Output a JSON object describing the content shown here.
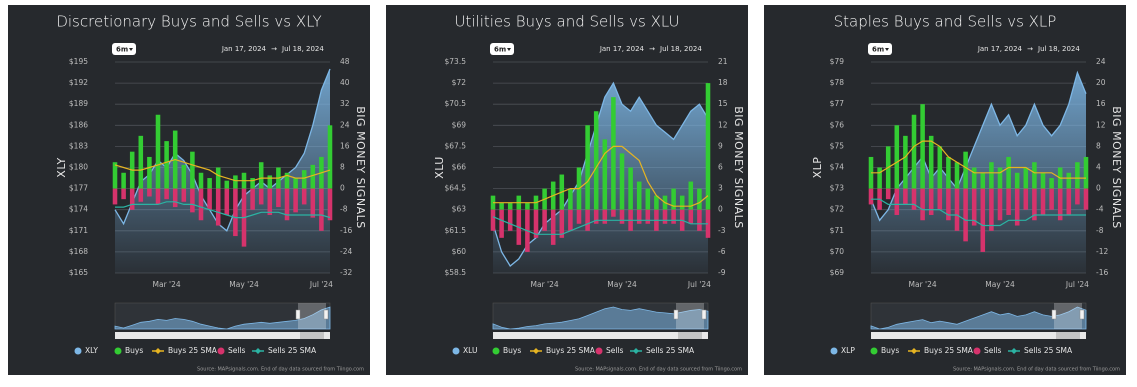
{
  "chart_data": [
    {
      "type": "combo",
      "title": "Discretionary Buys and Sells vs XLY",
      "range_button": "6m",
      "date_from": "Jan 17, 2024",
      "date_to": "Jul 18, 2024",
      "ylabel": "XLY",
      "y2label": "BIG MONEY SIGNALS",
      "source": "Source: MAPsignals.com. End of day data sourced from Tiingo.com",
      "categories": [
        null,
        null,
        null,
        null,
        null,
        null,
        "Mar '24",
        null,
        null,
        null,
        null,
        null,
        null,
        null,
        null,
        "May '24",
        null,
        null,
        null,
        null,
        null,
        null,
        null,
        null,
        "Jul '24",
        null
      ],
      "ylim": [
        165,
        195
      ],
      "yticks": [
        {
          "value": 195,
          "label": "$195"
        },
        {
          "value": 192,
          "label": "$192"
        },
        {
          "value": 189,
          "label": "$189"
        },
        {
          "value": 186,
          "label": "$186"
        },
        {
          "value": 183,
          "label": "$183"
        },
        {
          "value": 180,
          "label": "$180"
        },
        {
          "value": 177,
          "label": "$177"
        },
        {
          "value": 174,
          "label": "$174"
        },
        {
          "value": 171,
          "label": "$171"
        },
        {
          "value": 168,
          "label": "$168"
        },
        {
          "value": 165,
          "label": "$165"
        }
      ],
      "y2lim": [
        -32,
        48
      ],
      "y2ticks": [
        48,
        40,
        32,
        24,
        16,
        8,
        0,
        -8,
        -16,
        -24,
        -32
      ],
      "grid": true,
      "series": [
        {
          "name": "XLY",
          "kind": "area",
          "color": "#7db7e6",
          "values": [
            174,
            172,
            175,
            178,
            179,
            181,
            180,
            182,
            181,
            179,
            176,
            174,
            172,
            171,
            174,
            176,
            177,
            178,
            177,
            178,
            179,
            180,
            182,
            186,
            191,
            194
          ]
        },
        {
          "name": "Buys",
          "kind": "bar",
          "axis": "y2",
          "color": "#33cc33",
          "values": [
            10,
            6,
            14,
            20,
            12,
            28,
            18,
            22,
            9,
            14,
            6,
            4,
            8,
            3,
            5,
            6,
            4,
            10,
            5,
            8,
            6,
            4,
            7,
            9,
            12,
            24
          ]
        },
        {
          "name": "Buys 25 SMA",
          "kind": "line",
          "axis": "y2",
          "color": "#e6b422",
          "values": [
            9,
            8,
            7,
            7,
            8,
            9,
            10,
            11,
            10,
            9,
            8,
            7,
            5,
            4,
            3,
            3,
            3,
            4,
            4,
            4,
            5,
            4,
            4,
            5,
            6,
            7
          ]
        },
        {
          "name": "Sells",
          "kind": "bar",
          "axis": "y2",
          "color": "#d6336c",
          "values": [
            -6,
            -4,
            -8,
            -5,
            -3,
            -6,
            -4,
            -7,
            -5,
            -9,
            -12,
            -8,
            -14,
            -10,
            -18,
            -22,
            -8,
            -6,
            -10,
            -7,
            -12,
            -9,
            -6,
            -11,
            -16,
            -12
          ]
        },
        {
          "name": "Sells 25 SMA",
          "kind": "line",
          "axis": "y2",
          "color": "#2bb3a3",
          "values": [
            -7,
            -7,
            -6,
            -6,
            -6,
            -6,
            -5,
            -5,
            -6,
            -6,
            -7,
            -8,
            -9,
            -10,
            -11,
            -11,
            -10,
            -9,
            -9,
            -9,
            -10,
            -10,
            -10,
            -10,
            -10,
            -11
          ]
        }
      ]
    },
    {
      "type": "combo",
      "title": "Utilities Buys and Sells vs XLU",
      "range_button": "6m",
      "date_from": "Jan 17, 2024",
      "date_to": "Jul 18, 2024",
      "ylabel": "XLU",
      "y2label": "BIG MONEY SIGNALS",
      "source": "Source: MAPsignals.com. End of day data sourced from Tiingo.com",
      "categories": [
        null,
        null,
        null,
        null,
        null,
        null,
        "Mar '24",
        null,
        null,
        null,
        null,
        null,
        null,
        null,
        null,
        "May '24",
        null,
        null,
        null,
        null,
        null,
        null,
        null,
        null,
        "Jul '24",
        null
      ],
      "ylim": [
        58.5,
        73.5
      ],
      "yticks": [
        {
          "value": 73.5,
          "label": "$73.5"
        },
        {
          "value": 72,
          "label": "$72"
        },
        {
          "value": 70.5,
          "label": "$70.5"
        },
        {
          "value": 69,
          "label": "$69"
        },
        {
          "value": 67.5,
          "label": "$67.5"
        },
        {
          "value": 66,
          "label": "$66"
        },
        {
          "value": 64.5,
          "label": "$64.5"
        },
        {
          "value": 63,
          "label": "$63"
        },
        {
          "value": 61.5,
          "label": "$61.5"
        },
        {
          "value": 60,
          "label": "$60"
        },
        {
          "value": 58.5,
          "label": "$58.5"
        }
      ],
      "y2lim": [
        -9,
        21
      ],
      "y2ticks": [
        21,
        18,
        15,
        12,
        9,
        6,
        3,
        0,
        -3,
        -6,
        -9
      ],
      "grid": true,
      "series": [
        {
          "name": "XLU",
          "kind": "area",
          "color": "#7db7e6",
          "values": [
            62,
            60,
            59,
            59.5,
            60.5,
            61,
            62,
            62.5,
            63,
            64,
            65,
            67,
            69,
            71,
            72,
            70.5,
            70,
            71,
            70,
            69,
            68.5,
            68,
            69,
            70,
            70.5,
            69.5
          ]
        },
        {
          "name": "Buys",
          "kind": "bar",
          "axis": "y2",
          "color": "#33cc33",
          "values": [
            2,
            1,
            1,
            2,
            1,
            2,
            3,
            4,
            5,
            3,
            6,
            12,
            14,
            10,
            16,
            8,
            6,
            4,
            3,
            2,
            2,
            3,
            2,
            4,
            3,
            18
          ]
        },
        {
          "name": "Buys 25 SMA",
          "kind": "line",
          "axis": "y2",
          "color": "#e6b422",
          "values": [
            1,
            1,
            1,
            1,
            1,
            1,
            1.5,
            2,
            2.5,
            3,
            3,
            4,
            6,
            8,
            9,
            9,
            8,
            7,
            4,
            2,
            1,
            0.5,
            0.5,
            0.5,
            1,
            2
          ]
        },
        {
          "name": "Sells",
          "kind": "bar",
          "axis": "y2",
          "color": "#d6336c",
          "values": [
            -3,
            -4,
            -3,
            -5,
            -6,
            -4,
            -3,
            -5,
            -4,
            -3,
            -2,
            -3,
            -2,
            -2,
            -1,
            -2,
            -3,
            -2,
            -2,
            -3,
            -2,
            -2,
            -3,
            -2,
            -3,
            -4
          ]
        },
        {
          "name": "Sells 25 SMA",
          "kind": "line",
          "axis": "y2",
          "color": "#2bb3a3",
          "values": [
            -1,
            -1.5,
            -2,
            -2.5,
            -3,
            -3.5,
            -3.5,
            -3.5,
            -3.5,
            -3,
            -2.5,
            -2,
            -1.5,
            -1.5,
            -1.5,
            -1.5,
            -1.5,
            -1.5,
            -1.5,
            -1.5,
            -1.5,
            -1.5,
            -1.5,
            -2,
            -2,
            -2
          ]
        }
      ]
    },
    {
      "type": "combo",
      "title": "Staples Buys and Sells vs XLP",
      "range_button": "6m",
      "date_from": "Jan 17, 2024",
      "date_to": "Jul 18, 2024",
      "ylabel": "XLP",
      "y2label": "BIG MONEY SIGNALS",
      "source": "Source: MAPsignals.com. End of day data sourced from Tiingo.com",
      "categories": [
        null,
        null,
        null,
        null,
        null,
        null,
        "Mar '24",
        null,
        null,
        null,
        null,
        null,
        null,
        null,
        null,
        "May '24",
        null,
        null,
        null,
        null,
        null,
        null,
        null,
        null,
        "Jul '24",
        null
      ],
      "ylim": [
        69,
        79
      ],
      "yticks": [
        {
          "value": 79,
          "label": "$79"
        },
        {
          "value": 78,
          "label": "$78"
        },
        {
          "value": 77,
          "label": "$77"
        },
        {
          "value": 76,
          "label": "$76"
        },
        {
          "value": 75,
          "label": "$75"
        },
        {
          "value": 74,
          "label": "$74"
        },
        {
          "value": 73,
          "label": "$73"
        },
        {
          "value": 72,
          "label": "$72"
        },
        {
          "value": 71,
          "label": "$71"
        },
        {
          "value": 70,
          "label": "$70"
        },
        {
          "value": 69,
          "label": "$69"
        }
      ],
      "y2lim": [
        -16,
        24
      ],
      "y2ticks": [
        24,
        20,
        16,
        12,
        8,
        4,
        0,
        -4,
        -8,
        -12,
        -16
      ],
      "grid": true,
      "series": [
        {
          "name": "XLP",
          "kind": "area",
          "color": "#7db7e6",
          "values": [
            72.5,
            71.5,
            72,
            73,
            73.5,
            74,
            74.5,
            73.5,
            74,
            73.5,
            73,
            74,
            75,
            76,
            77,
            76,
            76.5,
            75.5,
            76,
            77,
            76,
            75.5,
            76,
            77,
            78.5,
            77.5
          ]
        },
        {
          "name": "Buys",
          "kind": "bar",
          "axis": "y2",
          "color": "#33cc33",
          "values": [
            6,
            4,
            8,
            12,
            10,
            14,
            16,
            10,
            8,
            6,
            5,
            7,
            4,
            3,
            5,
            4,
            6,
            3,
            4,
            5,
            3,
            2,
            4,
            3,
            5,
            6
          ]
        },
        {
          "name": "Buys 25 SMA",
          "kind": "line",
          "axis": "y2",
          "color": "#e6b422",
          "values": [
            3,
            3,
            4,
            5,
            6,
            8,
            9,
            9,
            8,
            6,
            5,
            4,
            3,
            3,
            3,
            3,
            4,
            4,
            4,
            3,
            3,
            3,
            2,
            2,
            2,
            2
          ]
        },
        {
          "name": "Sells",
          "kind": "bar",
          "axis": "y2",
          "color": "#d6336c",
          "values": [
            -3,
            -4,
            -2,
            -5,
            -3,
            -4,
            -6,
            -5,
            -4,
            -6,
            -8,
            -10,
            -7,
            -12,
            -8,
            -6,
            -5,
            -7,
            -4,
            -6,
            -5,
            -4,
            -6,
            -5,
            -3,
            -4
          ]
        },
        {
          "name": "Sells 25 SMA",
          "kind": "line",
          "axis": "y2",
          "color": "#2bb3a3",
          "values": [
            -2,
            -2,
            -3,
            -3,
            -3,
            -3,
            -4,
            -4,
            -4,
            -5,
            -5,
            -6,
            -6,
            -7,
            -7,
            -7,
            -6,
            -6,
            -6,
            -5,
            -5,
            -5,
            -5,
            -5,
            -5,
            -5
          ]
        }
      ]
    }
  ]
}
